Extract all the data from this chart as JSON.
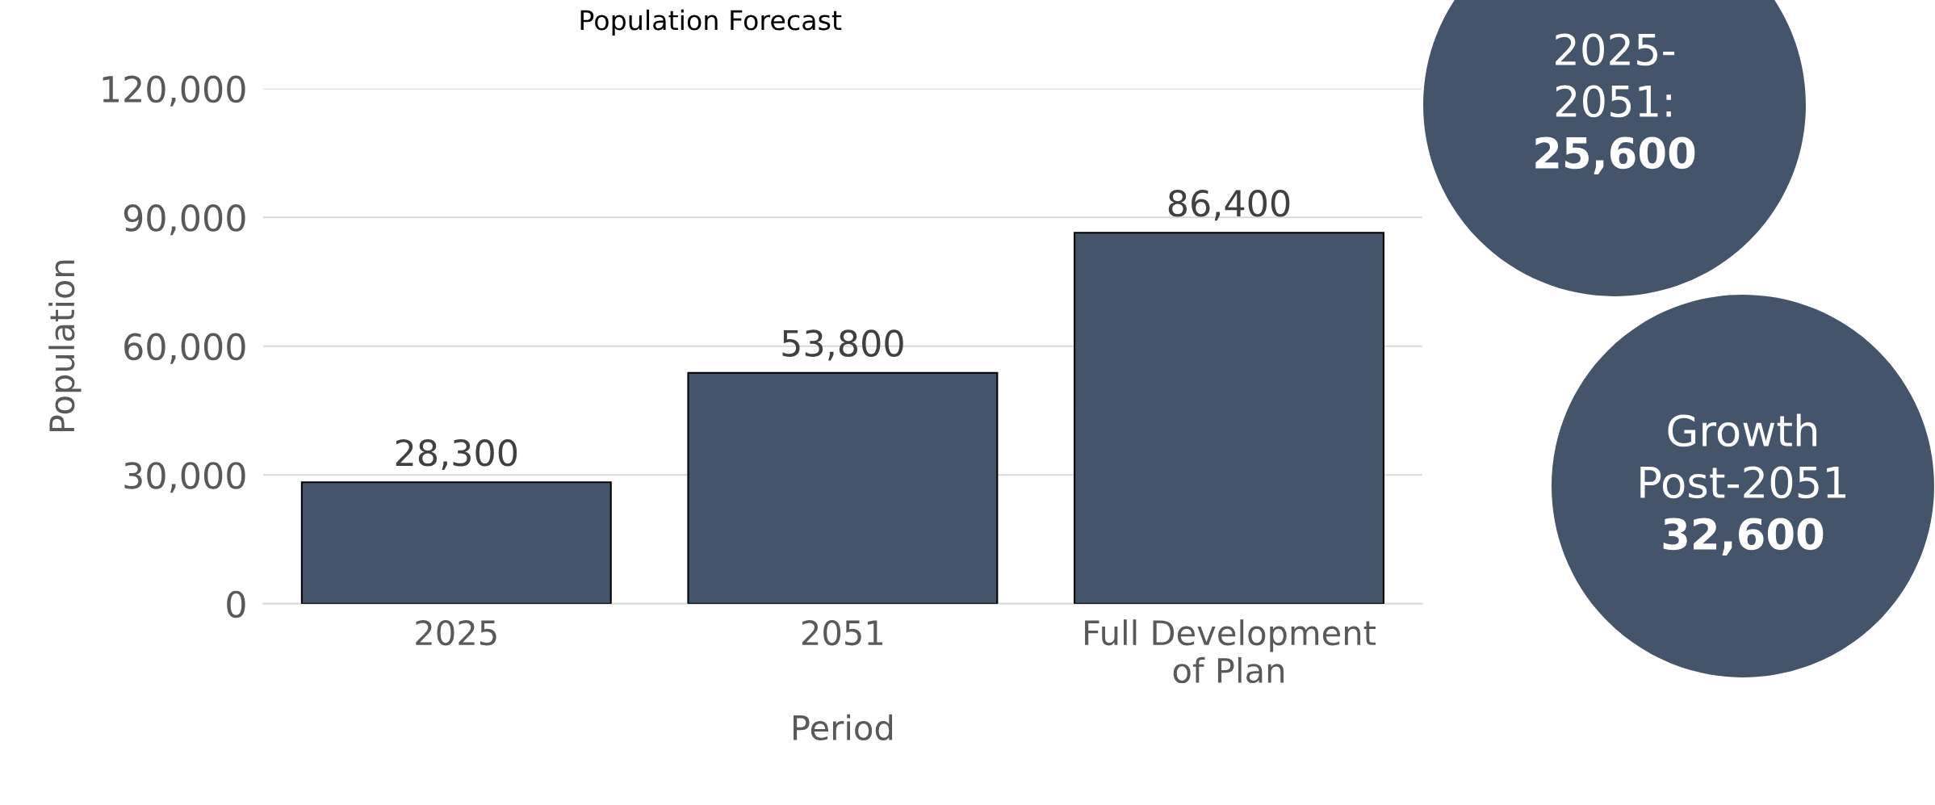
{
  "chart_data": {
    "type": "bar",
    "title": "Population Forecast",
    "xlabel": "Period",
    "ylabel": "Population",
    "categories": [
      "2025",
      "2051",
      "Full Development\nof Plan"
    ],
    "values": [
      28300,
      53800,
      86400
    ],
    "color": "#44546a",
    "ylim": [
      0,
      120000
    ],
    "yticks": [
      {
        "value": 0,
        "label": "0"
      },
      {
        "value": 30000,
        "label": "30,000"
      },
      {
        "value": 60000,
        "label": "60,000"
      },
      {
        "value": 90000,
        "label": "90,000"
      },
      {
        "value": 120000,
        "label": "120,000"
      }
    ],
    "grid": "y",
    "value_labels": [
      "28,300",
      "53,800",
      "86,400"
    ],
    "annotations": [
      "2025-\n2051:\n25,600",
      "Growth\nPost-2051\n32,600"
    ]
  }
}
